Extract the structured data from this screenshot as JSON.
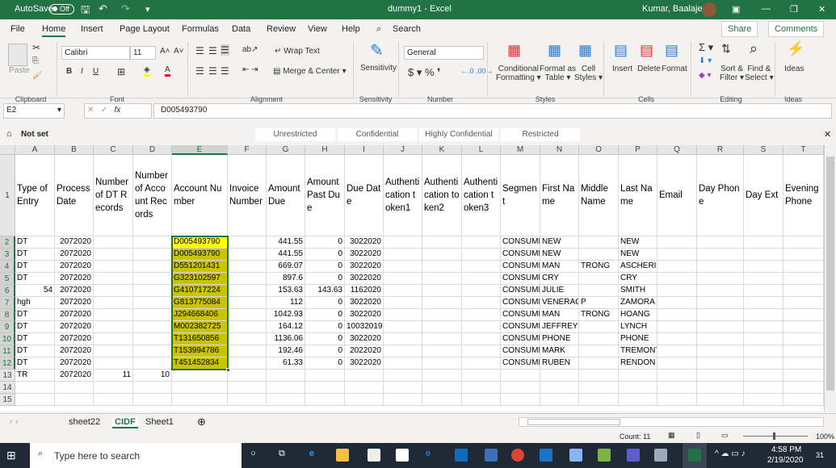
{
  "titlebar": {
    "autosave_label": "AutoSave",
    "autosave_state": "Off",
    "title": "dummy1 - Excel",
    "user": "Kumar, Baalajee"
  },
  "tabs": [
    "File",
    "Home",
    "Insert",
    "Page Layout",
    "Formulas",
    "Data",
    "Review",
    "View",
    "Help"
  ],
  "search_label": "Search",
  "share_label": "Share",
  "comments_label": "Comments",
  "ribbon": {
    "paste": "Paste",
    "font_name": "Calibri",
    "font_size": "11",
    "wrap_text": "Wrap Text",
    "merge_center": "Merge & Center",
    "sensitivity": "Sensitivity",
    "number_format": "General",
    "conditional": "Conditional",
    "formatting": "Formatting",
    "format_as": "Format as",
    "table": "Table",
    "cell": "Cell",
    "styles": "Styles",
    "insert": "Insert",
    "delete": "Delete",
    "format": "Format",
    "sort": "Sort &",
    "filter": "Filter",
    "find": "Find &",
    "select": "Select",
    "ideas": "Ideas",
    "groups": [
      "Clipboard",
      "Font",
      "Alignment",
      "Sensitivity",
      "Number",
      "Styles",
      "Cells",
      "Editing",
      "Ideas"
    ],
    "font_color": "#e81123",
    "fill_color": "#ffff00"
  },
  "formula_bar": {
    "name_box": "E2",
    "formula": "D005493790"
  },
  "sensitivity_bar": {
    "status": "Not set",
    "labels": [
      "Unrestricted",
      "Confidential",
      "Highly Confidential",
      "Restricted"
    ]
  },
  "columns": [
    "A",
    "B",
    "C",
    "D",
    "E",
    "F",
    "G",
    "H",
    "I",
    "J",
    "K",
    "L",
    "M",
    "N",
    "O",
    "P",
    "Q",
    "R",
    "S",
    "T"
  ],
  "rows": [
    [
      "Type of Entry",
      "Process Date",
      "Number of DT Records",
      "Number of Account Records",
      "Account Number",
      "Invoice Number",
      "Amount Due",
      "Amount Past Due",
      "Due Date",
      "Authentication token1",
      "Authentication token2",
      "Authentication token3",
      "Segment",
      "First Name",
      "Middle Name",
      "Last Name",
      "Email",
      "Day Phone",
      "Day Ext",
      "Evening Phone"
    ],
    [
      "DT",
      "2072020",
      "",
      "",
      "D005493790",
      "",
      "441.55",
      "0",
      "3022020",
      "",
      "",
      "",
      "CONSUME",
      "NEW",
      "",
      "NEW"
    ],
    [
      "DT",
      "2072020",
      "",
      "",
      "D005493790",
      "",
      "441.55",
      "0",
      "3022020",
      "",
      "",
      "",
      "CONSUME",
      "NEW",
      "",
      "NEW"
    ],
    [
      "DT",
      "2072020",
      "",
      "",
      "D551201431",
      "",
      "669.07",
      "0",
      "3022020",
      "",
      "",
      "",
      "CONSUME",
      "MAN",
      "TRONG",
      "ASCHERIN"
    ],
    [
      "DT",
      "2072020",
      "",
      "",
      "G323102597",
      "",
      "897.6",
      "0",
      "3022020",
      "",
      "",
      "",
      "CONSUME",
      "CRY",
      "",
      "CRY"
    ],
    [
      "54",
      "2072020",
      "",
      "",
      "G410717224",
      "",
      "153.63",
      "143.63",
      "1162020",
      "",
      "",
      "",
      "CONSUME",
      "JULIE",
      "",
      "SMITH"
    ],
    [
      "hgh",
      "2072020",
      "",
      "",
      "G813775084",
      "",
      "112",
      "0",
      "3022020",
      "",
      "",
      "",
      "CONSUME",
      "VENERACI",
      "P",
      "ZAMORA"
    ],
    [
      "DT",
      "2072020",
      "",
      "",
      "J294668406",
      "",
      "1042.93",
      "0",
      "3022020",
      "",
      "",
      "",
      "CONSUME",
      "MAN",
      "TRONG",
      "HOANG"
    ],
    [
      "DT",
      "2072020",
      "",
      "",
      "M002382725",
      "",
      "164.12",
      "0",
      "10032019",
      "",
      "",
      "",
      "CONSUME",
      "JEFFREY",
      "",
      "LYNCH"
    ],
    [
      "DT",
      "2072020",
      "",
      "",
      "T131650856",
      "",
      "1136.06",
      "0",
      "3022020",
      "",
      "",
      "",
      "CONSUME",
      "PHONE",
      "",
      "PHONE"
    ],
    [
      "DT",
      "2072020",
      "",
      "",
      "T153994786",
      "",
      "192.46",
      "0",
      "2022020",
      "",
      "",
      "",
      "CONSUME",
      "MARK",
      "",
      "TREMONTI"
    ],
    [
      "DT",
      "2072020",
      "",
      "",
      "T451452834",
      "",
      "61.33",
      "0",
      "3022020",
      "",
      "",
      "",
      "CONSUME",
      "RUBEN",
      "",
      "RENDON"
    ],
    [
      "TR",
      "2072020",
      "11",
      "10"
    ],
    [],
    []
  ],
  "selection": {
    "range": "E2:E12",
    "active": "E2",
    "fill": "#c8c400",
    "active_fill": "#ffff00",
    "border": "#217346"
  },
  "sheets": [
    "sheet22",
    "CIDF",
    "Sheet1"
  ],
  "active_sheet": "CIDF",
  "status": {
    "count": "Count: 11",
    "zoom": "100%"
  },
  "taskbar": {
    "search_placeholder": "Type here to search",
    "time": "4:58 PM",
    "date": "2/19/2020",
    "notifications": "31"
  }
}
